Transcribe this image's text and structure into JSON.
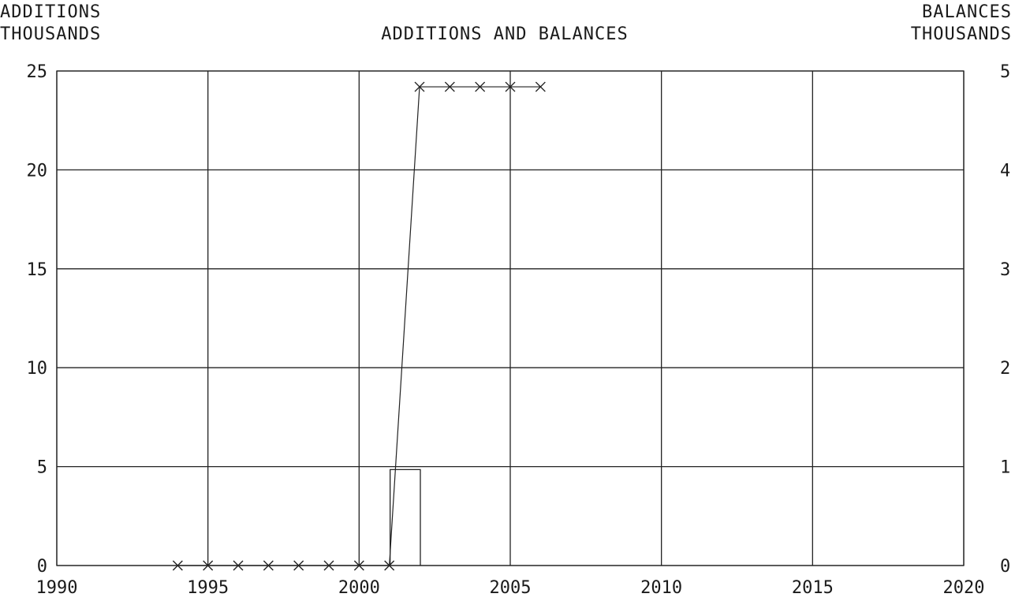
{
  "chart_data": {
    "type": "line",
    "title": "ADDITIONS AND BALANCES",
    "left_axis_label": [
      "ADDITIONS",
      "THOUSANDS"
    ],
    "right_axis_label": [
      "BALANCES",
      "THOUSANDS"
    ],
    "x_ticks": [
      "1990",
      "1995",
      "2000",
      "2005",
      "2010",
      "2015",
      "2020"
    ],
    "y_left_ticks": [
      "0",
      "5",
      "10",
      "15",
      "20",
      "25"
    ],
    "y_right_ticks": [
      "0",
      "1",
      "2",
      "3",
      "4",
      "5"
    ],
    "xlim": [
      1990,
      2020
    ],
    "ylim_left": [
      0,
      25
    ],
    "ylim_right": [
      0,
      5
    ],
    "grid": true,
    "series": [
      {
        "type": "line",
        "axis": "left",
        "marker": "x",
        "x": [
          1994,
          1995,
          1996,
          1997,
          1998,
          1999,
          2000,
          2001,
          2002,
          2003,
          2004,
          2005,
          2006
        ],
        "y": [
          0,
          0,
          0,
          0,
          0,
          0,
          0,
          0,
          24.2,
          24.2,
          24.2,
          24.2,
          24.2
        ]
      },
      {
        "type": "bar",
        "axis": "right",
        "x": [
          2001,
          2002
        ],
        "y": [
          0.97,
          0
        ]
      }
    ]
  }
}
